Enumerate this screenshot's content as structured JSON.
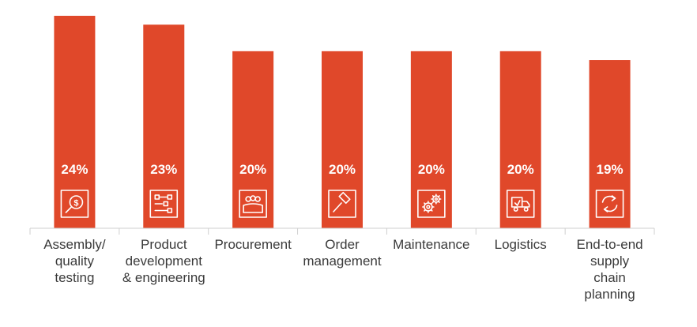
{
  "chart_data": {
    "type": "bar",
    "categories": [
      "Assembly/ quality testing",
      "Product development & engineering",
      "Procurement",
      "Order management",
      "Maintenance",
      "Logistics",
      "End-to-end supply chain planning"
    ],
    "category_lines": [
      [
        "Assembly/",
        "quality",
        "testing"
      ],
      [
        "Product",
        "development",
        "& engineering"
      ],
      [
        "Procurement"
      ],
      [
        "Order",
        "management"
      ],
      [
        "Maintenance"
      ],
      [
        "Logistics"
      ],
      [
        "End-to-end",
        "supply",
        "chain",
        "planning"
      ]
    ],
    "values": [
      24,
      23,
      20,
      20,
      20,
      20,
      19
    ],
    "value_labels": [
      "24%",
      "23%",
      "20%",
      "20%",
      "20%",
      "20%",
      "19%"
    ],
    "icons": [
      "dollar-search-icon",
      "workflow-diagram-icon",
      "team-icon",
      "gavel-icon",
      "gears-icon",
      "delivery-truck-icon",
      "cycle-arrows-icon"
    ],
    "title": "",
    "xlabel": "",
    "ylabel": "",
    "ylim": [
      0,
      24
    ],
    "grid": false,
    "legend": "none",
    "colors": {
      "bar": "#E0482A",
      "axis": "#cfcfcf",
      "icon": "#ffffff",
      "value_text": "#ffffff",
      "label_text": "#3a3a3a"
    }
  }
}
